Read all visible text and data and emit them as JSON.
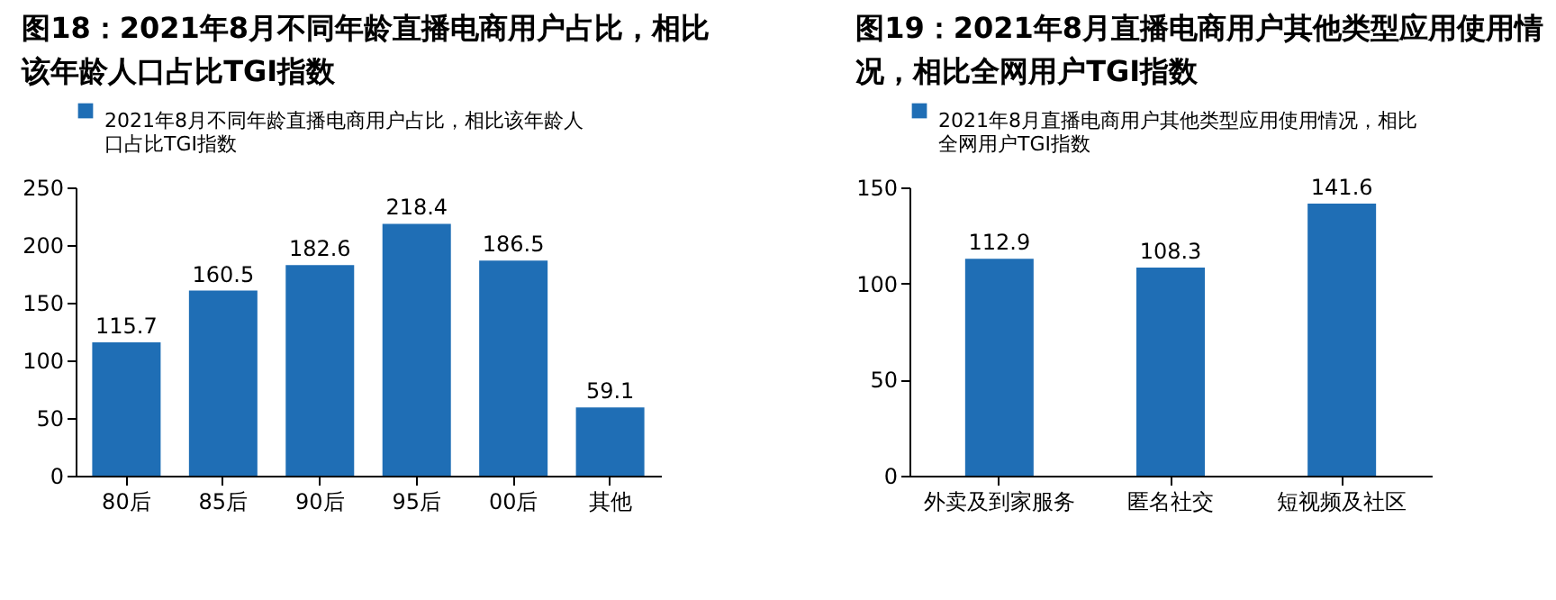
{
  "chart_data": [
    {
      "type": "bar",
      "title": "图18：2021年8月不同年龄直播电商用户占比，相比该年龄人口占比TGI指数",
      "categories": [
        "80后",
        "85后",
        "90后",
        "95后",
        "00后",
        "其他"
      ],
      "series": [
        {
          "name": "2021年8月不同年龄直播电商用户占比，相比该年龄人口占比TGI指数",
          "color": "#1f6eb5",
          "values": [
            115.7,
            160.5,
            182.6,
            218.4,
            186.5,
            59.1
          ]
        }
      ],
      "ylim": [
        0,
        250
      ],
      "yticks": [
        0,
        50,
        100,
        150,
        200,
        250
      ],
      "data_labels": true,
      "legend": "top",
      "grid": false
    },
    {
      "type": "bar",
      "title": "图19：2021年8月直播电商用户其他类型应用使用情况，相比全网用户TGI指数",
      "categories": [
        "外卖及到家服务",
        "匿名社交",
        "短视频及社区"
      ],
      "series": [
        {
          "name": "2021年8月直播电商用户其他类型应用使用情况，相比全网用户TGI指数",
          "color": "#1f6eb5",
          "values": [
            112.9,
            108.3,
            141.6
          ]
        }
      ],
      "ylim": [
        0,
        150
      ],
      "yticks": [
        0,
        50,
        100,
        150
      ],
      "data_labels": true,
      "legend": "top",
      "grid": false
    }
  ]
}
